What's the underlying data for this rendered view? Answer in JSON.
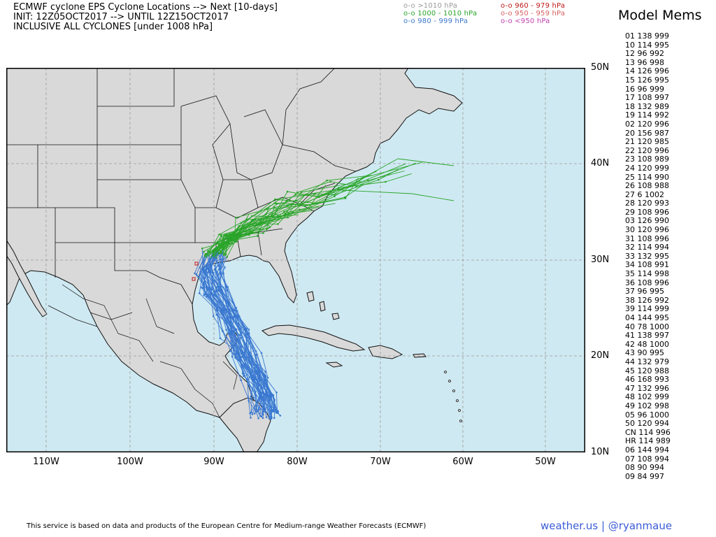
{
  "header": {
    "line1": "ECMWF cyclone EPS Cyclone Locations --> Next [10-days]",
    "line2": "INIT: 12Z05OCT2017 --> UNTIL 12Z15OCT2017",
    "line3": "INCLUSIVE ALL CYCLONES [under 1008 hPa]"
  },
  "legend": [
    {
      "label": "o-o >1010 hPa",
      "color": "#999999"
    },
    {
      "label": "o-o 1000 - 1010 hPa",
      "color": "#2aa52a"
    },
    {
      "label": "o-o 980 - 999 hPa",
      "color": "#3a78d0"
    },
    {
      "label": "o-o 960 - 979 hPa",
      "color": "#c01818"
    },
    {
      "label": "o-o 950 - 959 hPa",
      "color": "#d86060"
    },
    {
      "label": "o-o <950 hPa",
      "color": "#c040b0"
    }
  ],
  "members": {
    "title": "Model Mems",
    "items": [
      "01 138 999",
      "10 114 995",
      "12 96 992",
      "13 96 998",
      "14 126 996",
      "15 126 995",
      "16 96 999",
      "17 108 997",
      "18 132 989",
      "19 114 992",
      "02 120 996",
      "20 156 987",
      "21 120 985",
      "22 120 996",
      "23 108 989",
      "24 120 999",
      "25 114 990",
      "26 108 988",
      "27 6 1002",
      "28 120 993",
      "29 108 996",
      "03 126 990",
      "30 120 996",
      "31 108 996",
      "32 114 994",
      "33 132 995",
      "34 108 991",
      "35 114 998",
      "36 108 996",
      "37 96 995",
      "38 126 992",
      "39 114 999",
      "04 144 995",
      "40 78 1000",
      "41 138 997",
      "42 48 1000",
      "43 90 995",
      "44 132 979",
      "45 120 988",
      "46 168 993",
      "47 132 996",
      "48 102 999",
      "49 102 998",
      "05 96 1000",
      "50 120 994",
      "CN 114 996",
      "HR 114 989",
      "06 144 994",
      "07 108 994",
      "08 90 994",
      "09 84 997"
    ]
  },
  "map": {
    "lat_labels": [
      "50N",
      "40N",
      "30N",
      "20N",
      "10N"
    ],
    "lon_labels": [
      "110W",
      "100W",
      "90W",
      "80W",
      "70W",
      "60W",
      "50W"
    ],
    "ocean_color": "#cfe9f2",
    "land_color": "#d9d9d9"
  },
  "footer": {
    "credit": "This service is based on data and products of the European Centre for Medium-range Weather Forecasts (ECMWF)",
    "brand": "weather.us | @ryanmaue"
  }
}
